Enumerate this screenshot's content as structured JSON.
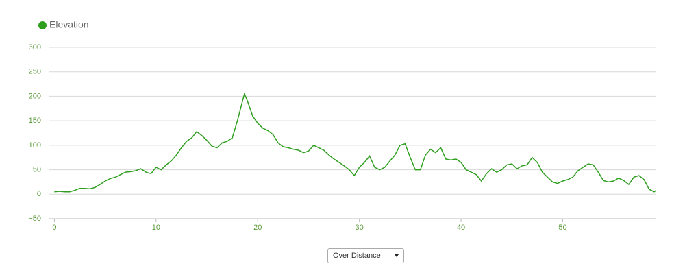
{
  "chart_data": {
    "type": "line",
    "series": [
      {
        "name": "Elevation",
        "color": "#2e9e1f",
        "values": [
          5,
          6,
          5,
          5,
          8,
          12,
          12,
          11,
          14,
          20,
          27,
          32,
          35,
          40,
          45,
          46,
          48,
          52,
          45,
          42,
          55,
          50,
          60,
          68,
          80,
          95,
          108,
          115,
          128,
          120,
          110,
          98,
          95,
          105,
          108,
          115,
          150,
          190,
          205,
          190,
          160,
          145,
          135,
          130,
          122,
          105,
          97,
          95,
          92,
          90,
          85,
          88,
          100,
          95,
          90,
          80,
          72,
          65,
          58,
          50,
          38,
          55,
          65,
          78,
          55,
          50,
          55,
          68,
          80,
          100,
          103,
          75,
          50,
          50,
          80,
          92,
          85,
          95,
          72,
          70,
          72,
          65,
          50,
          45,
          40,
          27,
          42,
          52,
          45,
          50,
          60,
          62,
          52,
          58,
          60,
          75,
          65,
          45,
          35,
          25,
          22,
          27,
          30,
          35,
          48,
          55,
          62,
          60,
          45,
          28,
          25,
          27,
          33,
          28,
          20,
          35,
          38,
          30,
          10,
          5,
          8
        ]
      }
    ],
    "x": [
      0,
      0.5,
      1,
      1.5,
      2,
      2.5,
      3,
      3.5,
      4,
      4.5,
      5,
      5.5,
      6,
      6.5,
      7,
      7.5,
      8,
      8.5,
      9,
      9.5,
      10,
      10.5,
      11,
      11.5,
      12,
      12.5,
      13,
      13.5,
      14,
      14.5,
      15,
      15.5,
      16,
      16.5,
      17,
      17.5,
      18,
      18.5,
      18.7,
      19,
      19.5,
      20,
      20.5,
      21,
      21.5,
      22,
      22.5,
      23,
      23.5,
      24,
      24.5,
      25,
      25.5,
      26,
      26.5,
      27,
      27.5,
      28,
      28.5,
      29,
      29.5,
      30,
      30.5,
      31,
      31.5,
      32,
      32.5,
      33,
      33.5,
      34,
      34.5,
      35,
      35.5,
      36,
      36.5,
      37,
      37.5,
      38,
      38.5,
      39,
      39.5,
      40,
      40.5,
      41,
      41.5,
      42,
      42.5,
      43,
      43.5,
      44,
      44.5,
      45,
      45.5,
      46,
      46.5,
      47,
      47.5,
      48,
      48.5,
      49,
      49.5,
      50,
      50.5,
      51,
      51.5,
      52,
      52.5,
      53,
      53.5,
      54,
      54.5,
      55,
      55.5,
      56,
      56.5,
      57,
      57.5,
      58,
      58.5,
      59,
      59.2
    ],
    "xlim": [
      -0.5,
      59.2
    ],
    "xticks": [
      0,
      10,
      20,
      30,
      40,
      50
    ],
    "ylim": [
      -50,
      300
    ],
    "yticks": [
      {
        "value": -50,
        "label": "−50"
      },
      0,
      50,
      100,
      150,
      200,
      250,
      300
    ],
    "grid": true,
    "legend": "top-left",
    "tick_color": "#5a9a3a"
  },
  "controls": {
    "select": "Over Distance"
  }
}
